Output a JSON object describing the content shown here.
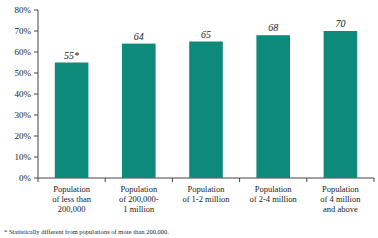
{
  "chart_data": {
    "type": "bar",
    "categories": [
      "Population\nof less than\n200,000",
      "Population\nof 200,000-\n1 million",
      "Population\nof 1-2 million",
      "Population\nof 2-4 million",
      "Population\nof 4 million\nand above"
    ],
    "values": [
      55,
      64,
      65,
      68,
      70
    ],
    "value_labels": [
      "55*",
      "64",
      "65",
      "68",
      "70"
    ],
    "data_labels": true,
    "color": "#0e8a7a",
    "ylim": [
      0,
      80
    ],
    "yticks": [
      {
        "value": 0,
        "label": "0%"
      },
      {
        "value": 10,
        "label": "10%"
      },
      {
        "value": 20,
        "label": "20%"
      },
      {
        "value": 30,
        "label": "30%"
      },
      {
        "value": 40,
        "label": "40%"
      },
      {
        "value": 50,
        "label": "50%"
      },
      {
        "value": 60,
        "label": "60%"
      },
      {
        "value": 70,
        "label": "70%"
      },
      {
        "value": 80,
        "label": "80%"
      }
    ],
    "grid": false,
    "annotations": [
      "* Statistically different from populations of more than 200,000."
    ]
  }
}
